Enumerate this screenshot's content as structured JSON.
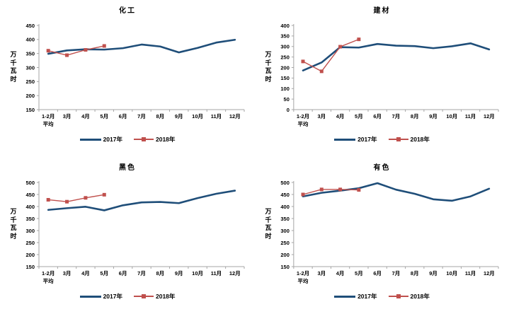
{
  "style": {
    "background": "#ffffff",
    "series_2017_color": "#1F4E79",
    "series_2018_color": "#C0504D",
    "axis_color": "#A6A6A6",
    "text_color": "#000000"
  },
  "chart_data": [
    {
      "type": "line",
      "title": "化工",
      "ylabel": "万千瓦时",
      "xlabel": "",
      "ylim": [
        150,
        450
      ],
      "ytick_step": 50,
      "grid": false,
      "legend_position": "bottom",
      "categories": [
        "1-2月\n平均",
        "3月",
        "4月",
        "5月",
        "6月",
        "7月",
        "8月",
        "9月",
        "10月",
        "11月",
        "12月"
      ],
      "series": [
        {
          "name": "2017年",
          "values": [
            349,
            361,
            365,
            364,
            369,
            382,
            375,
            354,
            370,
            389,
            399
          ]
        },
        {
          "name": "2018年",
          "values": [
            360,
            344,
            363,
            377
          ]
        }
      ]
    },
    {
      "type": "line",
      "title": "建材",
      "ylabel": "万千瓦时",
      "xlabel": "",
      "ylim": [
        0,
        400
      ],
      "ytick_step": 50,
      "grid": false,
      "legend_position": "bottom",
      "categories": [
        "1-2月\n平均",
        "3月",
        "4月",
        "5月",
        "6月",
        "7月",
        "8月",
        "9月",
        "10月",
        "11月",
        "12月"
      ],
      "series": [
        {
          "name": "2017年",
          "values": [
            186,
            224,
            297,
            295,
            312,
            304,
            302,
            292,
            301,
            315,
            286
          ]
        },
        {
          "name": "2018年",
          "values": [
            229,
            182,
            299,
            334
          ]
        }
      ]
    },
    {
      "type": "line",
      "title": "黑色",
      "ylabel": "万千瓦时",
      "xlabel": "",
      "ylim": [
        150,
        500
      ],
      "ytick_step": 50,
      "grid": false,
      "legend_position": "bottom",
      "categories": [
        "1-2月\n平均",
        "3月",
        "4月",
        "5月",
        "6月",
        "7月",
        "8月",
        "9月",
        "10月",
        "11月",
        "12月"
      ],
      "series": [
        {
          "name": "2017年",
          "values": [
            386,
            393,
            399,
            384,
            405,
            417,
            419,
            414,
            435,
            453,
            466
          ]
        },
        {
          "name": "2018年",
          "values": [
            428,
            420,
            436,
            449
          ]
        }
      ]
    },
    {
      "type": "line",
      "title": "有色",
      "ylabel": "万千瓦时",
      "xlabel": "",
      "ylim": [
        150,
        500
      ],
      "ytick_step": 50,
      "grid": false,
      "legend_position": "bottom",
      "categories": [
        "1-2月\n平均",
        "3月",
        "4月",
        "5月",
        "6月",
        "7月",
        "8月",
        "9月",
        "10月",
        "11月",
        "12月"
      ],
      "series": [
        {
          "name": "2017年",
          "values": [
            442,
            457,
            466,
            476,
            497,
            470,
            453,
            430,
            424,
            442,
            474
          ]
        },
        {
          "name": "2018年",
          "values": [
            450,
            471,
            471,
            469
          ]
        }
      ]
    }
  ]
}
